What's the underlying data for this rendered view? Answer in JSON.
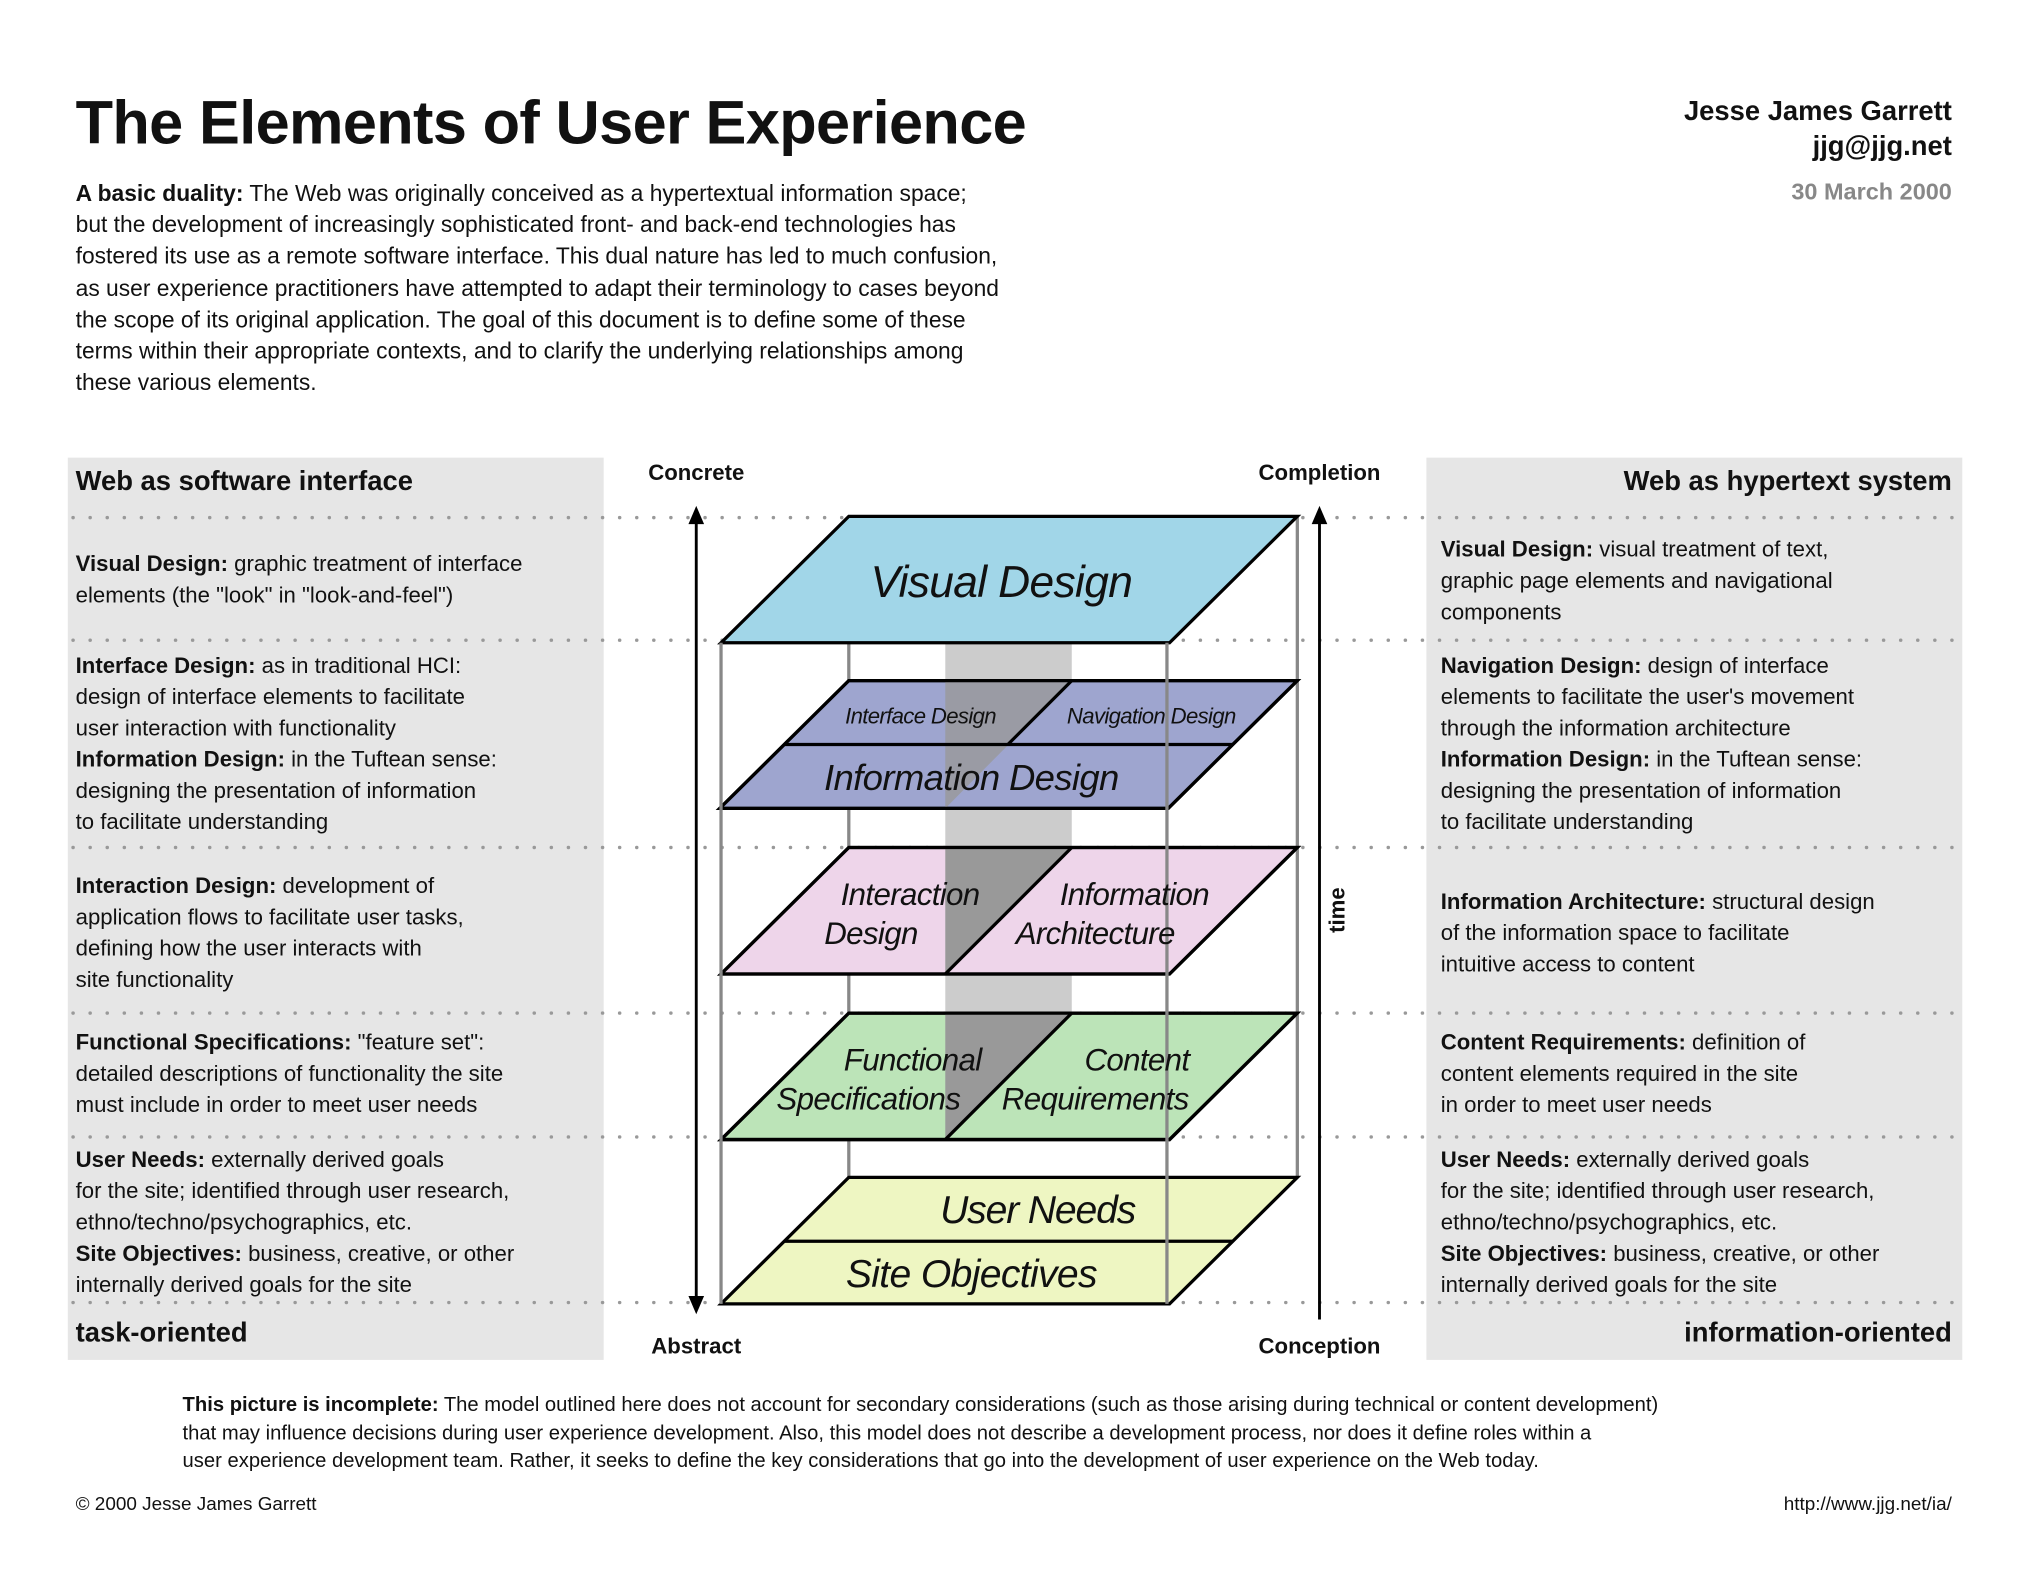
{
  "header": {
    "title": "The Elements of User Experience",
    "author": "Jesse James Garrett",
    "email": "jjg@jjg.net",
    "date": "30 March 2000"
  },
  "intro": {
    "lead": "A basic duality:",
    "lines": [
      " The Web was originally conceived as a hypertextual information space;",
      "but the development of increasingly sophisticated front- and back-end technologies has",
      "fostered its use as a remote software interface. This dual nature has led to much confusion,",
      "as user experience practitioners have attempted to adapt their terminology to cases beyond",
      "the scope of its original application. The goal of this document is to define some of these",
      "terms within their appropriate contexts, and to clarify the underlying relationships among",
      "these various elements."
    ]
  },
  "left_panel": {
    "heading": "Web as software interface",
    "footer": "task-oriented",
    "blocks": [
      [
        {
          "term": "Visual Design:",
          "lines": [
            " graphic treatment of interface",
            "elements (the \"look\" in \"look-and-feel\")"
          ]
        }
      ],
      [
        {
          "term": "Interface Design:",
          "lines": [
            " as in traditional HCI:",
            "design of interface elements to facilitate",
            "user interaction with functionality"
          ]
        },
        {
          "term": "Information Design:",
          "lines": [
            " in the Tuftean sense:",
            "designing the presentation of information",
            "to facilitate understanding"
          ]
        }
      ],
      [
        {
          "term": "Interaction Design:",
          "lines": [
            " development of",
            "application flows to facilitate user tasks,",
            "defining how the user interacts with",
            "site functionality"
          ]
        }
      ],
      [
        {
          "term": "Functional Specifications:",
          "lines": [
            " \"feature set\":",
            "detailed descriptions of functionality the site",
            "must include in order to meet user needs"
          ]
        }
      ],
      [
        {
          "term": "User Needs:",
          "lines": [
            " externally derived goals",
            "for the site; identified through user research,",
            "ethno/techno/psychographics, etc."
          ]
        },
        {
          "term": "Site Objectives:",
          "lines": [
            " business, creative, or other",
            "internally derived goals for the site"
          ]
        }
      ]
    ]
  },
  "right_panel": {
    "heading": "Web as hypertext system",
    "footer": "information-oriented",
    "blocks": [
      [
        {
          "term": "Visual Design:",
          "lines": [
            " visual treatment of text,",
            "graphic page elements and navigational",
            "components"
          ]
        }
      ],
      [
        {
          "term": "Navigation Design:",
          "lines": [
            " design of interface",
            "elements to facilitate the user's movement",
            "through the information architecture"
          ]
        },
        {
          "term": "Information Design:",
          "lines": [
            " in the Tuftean sense:",
            "designing the presentation of information",
            "to facilitate understanding"
          ]
        }
      ],
      [
        {
          "term": "Information Architecture:",
          "lines": [
            " structural design",
            "of the information space to facilitate",
            "intuitive access to content"
          ]
        }
      ],
      [
        {
          "term": "Content Requirements:",
          "lines": [
            " definition of",
            "content elements required in the site",
            "in order to meet user needs"
          ]
        }
      ],
      [
        {
          "term": "User Needs:",
          "lines": [
            " externally derived goals",
            "for the site; identified through user research,",
            "ethno/techno/psychographics, etc."
          ]
        },
        {
          "term": "Site Objectives:",
          "lines": [
            " business, creative, or other",
            "internally derived goals for the site"
          ]
        }
      ]
    ]
  },
  "diagram": {
    "axis": {
      "top_left": "Concrete",
      "bottom_left": "Abstract",
      "top_right": "Completion",
      "bottom_right": "Conception",
      "time": "time"
    },
    "layers": {
      "visual_design": "Visual Design",
      "interface_design": "Interface Design",
      "navigation_design": "Navigation Design",
      "information_design": "Information Design",
      "interaction_design": [
        "Interaction",
        "Design"
      ],
      "information_architecture": [
        "Information",
        "Architecture"
      ],
      "functional_specifications": [
        "Functional",
        "Specifications"
      ],
      "content_requirements": [
        "Content",
        "Requirements"
      ],
      "user_needs": "User Needs",
      "site_objectives": "Site Objectives"
    },
    "colors": {
      "visual": "#a1d6e8",
      "blue": "#9ea5cf",
      "pink": "#eed5ea",
      "green": "#bce4b8",
      "yellow": "#eef6c2",
      "strip_light": "#cccccc",
      "strip_dark": "#999999",
      "panel": "#e6e6e6"
    }
  },
  "bottom_note": {
    "lead": "This picture is incomplete:",
    "lines": [
      " The model outlined here does not account for secondary considerations (such as those arising during technical or content development)",
      "that may influence decisions during user experience development. Also, this model does not describe a development process, nor does it define roles within a",
      "user experience development team. Rather, it seeks to define the key considerations that go into the development of user experience on the Web today."
    ]
  },
  "footer": {
    "copyright": "© 2000 Jesse James Garrett",
    "url": "http://www.jjg.net/ia/"
  }
}
